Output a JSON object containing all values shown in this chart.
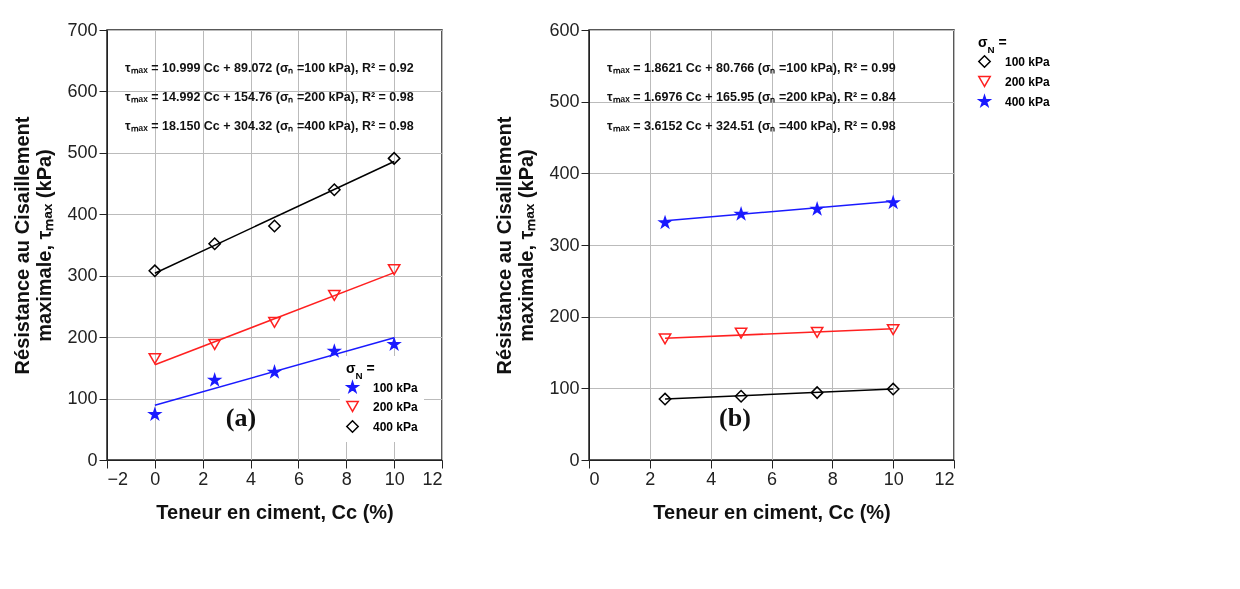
{
  "chart_data": [
    {
      "type": "scatter",
      "xlabel": "Teneur en ciment, Cc (%)",
      "ylabel": "Résistance au Cisaillement maximale, τₘₐₓ (kPa)",
      "legend_title": "σ$_{N}$ =",
      "legend": "bottom right",
      "grid": true,
      "xlim": [
        -2,
        12
      ],
      "ylim": [
        0,
        700
      ],
      "xticks": [
        -2,
        0,
        2,
        4,
        6,
        8,
        10,
        12
      ],
      "yticks": [
        0,
        100,
        200,
        300,
        400,
        500,
        600,
        700
      ],
      "annotations": [
        "τₘₐₓ = 10.999 Cc + 89.072 (σₙ =100 kPa), R² = 0.92",
        "τₘₐₓ = 14.992 Cc + 154.76 (σₙ =200 kPa), R² = 0.98",
        "τₘₐₓ = 18.150 Cc + 304.32 (σₙ =400 kPa), R² = 0.98",
        "(a)"
      ],
      "series": [
        {
          "name": "100 kPa",
          "color": "#1a1aff",
          "marker": "star",
          "x": [
            0,
            2.5,
            5,
            7.5,
            10
          ],
          "values": [
            74,
            130,
            143,
            177,
            188
          ]
        },
        {
          "name": "200 kPa",
          "color": "#ff2020",
          "marker": "triangle",
          "x": [
            0,
            2.5,
            5,
            7.5,
            10
          ],
          "values": [
            165,
            188,
            224,
            268,
            310
          ]
        },
        {
          "name": "400 kPa",
          "color": "#000000",
          "marker": "diamond",
          "x": [
            0,
            2.5,
            5,
            7.5,
            10
          ],
          "values": [
            308,
            352,
            381,
            440,
            491
          ]
        },
        {
          "type": "line",
          "color": "#1a1aff",
          "x": [
            0,
            10
          ],
          "values": [
            89,
            199
          ]
        },
        {
          "type": "line",
          "color": "#ff2020",
          "x": [
            0,
            10
          ],
          "values": [
            155,
            305
          ]
        },
        {
          "type": "line",
          "color": "#000000",
          "x": [
            0,
            10
          ],
          "values": [
            304,
            486
          ]
        }
      ]
    },
    {
      "type": "scatter",
      "xlabel": "Teneur en ciment, Cc (%)",
      "ylabel": "Résistance au Cisaillement maximale, τₘₐₓ (kPa)",
      "legend_title": "σ$_{N}$ =",
      "legend": "right",
      "grid": true,
      "xlim": [
        0,
        12
      ],
      "ylim": [
        0,
        600
      ],
      "xticks": [
        0,
        2,
        4,
        6,
        8,
        10,
        12
      ],
      "yticks": [
        0,
        100,
        200,
        300,
        400,
        500,
        600
      ],
      "annotations": [
        "τₘₐₓ = 1.8621 Cc + 80.766 (σₙ =100 kPa), R² = 0.99",
        "τₘₐₓ = 1.6976 Cc + 165.95 (σₙ =200 kPa), R² = 0.84",
        "τₘₐₓ = 3.6152 Cc + 324.51 (σₙ =400 kPa), R² = 0.98",
        "(b)"
      ],
      "series": [
        {
          "name": "100 kPa",
          "color": "#000000",
          "marker": "diamond",
          "x": [
            2.5,
            5,
            7.5,
            10
          ],
          "values": [
            85,
            89,
            94,
            99
          ]
        },
        {
          "name": "200 kPa",
          "color": "#ff2020",
          "marker": "triangle",
          "x": [
            2.5,
            5,
            7.5,
            10
          ],
          "values": [
            169,
            177,
            178,
            182
          ]
        },
        {
          "name": "400 kPa",
          "color": "#1a1aff",
          "marker": "star",
          "x": [
            2.5,
            5,
            7.5,
            10
          ],
          "values": [
            331,
            343,
            350,
            359
          ]
        },
        {
          "type": "line",
          "color": "#000000",
          "x": [
            2.5,
            10
          ],
          "values": [
            85,
            99
          ]
        },
        {
          "type": "line",
          "color": "#ff2020",
          "x": [
            2.5,
            10
          ],
          "values": [
            170,
            183
          ]
        },
        {
          "type": "line",
          "color": "#1a1aff",
          "x": [
            2.5,
            10
          ],
          "values": [
            334,
            361
          ]
        }
      ]
    }
  ]
}
